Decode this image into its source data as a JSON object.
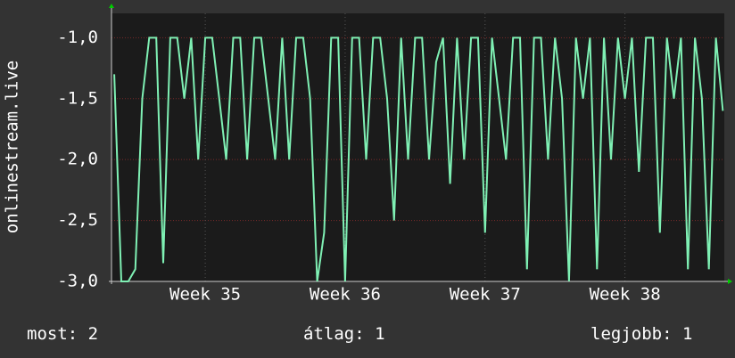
{
  "chart_data": {
    "type": "line",
    "y_label": "onlinestream.live",
    "x": [
      34.85,
      34.9,
      34.95,
      35,
      35.05,
      35.1,
      35.15,
      35.2,
      35.25,
      35.3,
      35.35,
      35.4,
      35.45,
      35.5,
      35.55,
      35.6,
      35.65,
      35.7,
      35.75,
      35.8,
      35.85,
      35.9,
      35.95,
      36,
      36.05,
      36.1,
      36.15,
      36.2,
      36.25,
      36.3,
      36.35,
      36.4,
      36.45,
      36.5,
      36.55,
      36.6,
      36.65,
      36.7,
      36.75,
      36.8,
      36.85,
      36.9,
      36.95,
      37,
      37.05,
      37.1,
      37.15,
      37.2,
      37.25,
      37.3,
      37.35,
      37.4,
      37.45,
      37.5,
      37.55,
      37.6,
      37.65,
      37.7,
      37.75,
      37.8,
      37.85,
      37.9,
      37.95,
      38,
      38.05,
      38.1,
      38.15,
      38.2,
      38.25,
      38.3,
      38.35,
      38.4,
      38.45,
      38.5,
      38.55,
      38.6,
      38.65,
      38.7,
      38.75,
      38.8,
      38.85,
      38.9,
      38.95,
      39,
      39.05,
      39.1,
      39.15,
      39.2
    ],
    "series": [
      {
        "color": "#7ff0b4",
        "values": [
          -1.3,
          -3,
          -3,
          -2.9,
          -1.5,
          -1,
          -1,
          -2.85,
          -1,
          -1,
          -1.5,
          -1,
          -2,
          -1,
          -1,
          -1.5,
          -2,
          -1,
          -1,
          -2,
          -1,
          -1,
          -1.5,
          -2,
          -1,
          -2,
          -1,
          -1,
          -1.5,
          -3,
          -2.6,
          -1,
          -1,
          -3,
          -1,
          -1,
          -2,
          -1,
          -1,
          -1.5,
          -2.5,
          -1,
          -2,
          -1,
          -1,
          -2,
          -1.2,
          -1,
          -2.2,
          -1,
          -2,
          -1,
          -1,
          -2.6,
          -1,
          -1.5,
          -2,
          -1,
          -1,
          -2.9,
          -1,
          -1,
          -2,
          -1,
          -1.5,
          -3,
          -1,
          -1.5,
          -1,
          -2.9,
          -1,
          -2,
          -1,
          -1.5,
          -1,
          -2.1,
          -1,
          -1,
          -2.6,
          -1,
          -1.5,
          -1,
          -2.9,
          -1,
          -1.5,
          -2.9,
          -1,
          -1.6
        ]
      }
    ],
    "xlim": [
      34.83,
      39.21
    ],
    "xticks": [
      {
        "value": 35.5,
        "label": "Week 35"
      },
      {
        "value": 36.5,
        "label": "Week 36"
      },
      {
        "value": 37.5,
        "label": "Week 37"
      },
      {
        "value": 38.5,
        "label": "Week 38"
      }
    ],
    "ylim": [
      -3.0,
      -0.8
    ],
    "yticks": [
      {
        "value": -3.0,
        "label": "-3,0"
      },
      {
        "value": -2.5,
        "label": "-2,5"
      },
      {
        "value": -2.0,
        "label": "-2,0"
      },
      {
        "value": -1.5,
        "label": "-1,5"
      },
      {
        "value": -1.0,
        "label": "-1,0"
      }
    ],
    "grid": true,
    "footer": [
      {
        "label": "most:",
        "value": 2
      },
      {
        "label": "átlag:",
        "value": 1
      },
      {
        "label": "legjobb:",
        "value": 1
      }
    ]
  }
}
